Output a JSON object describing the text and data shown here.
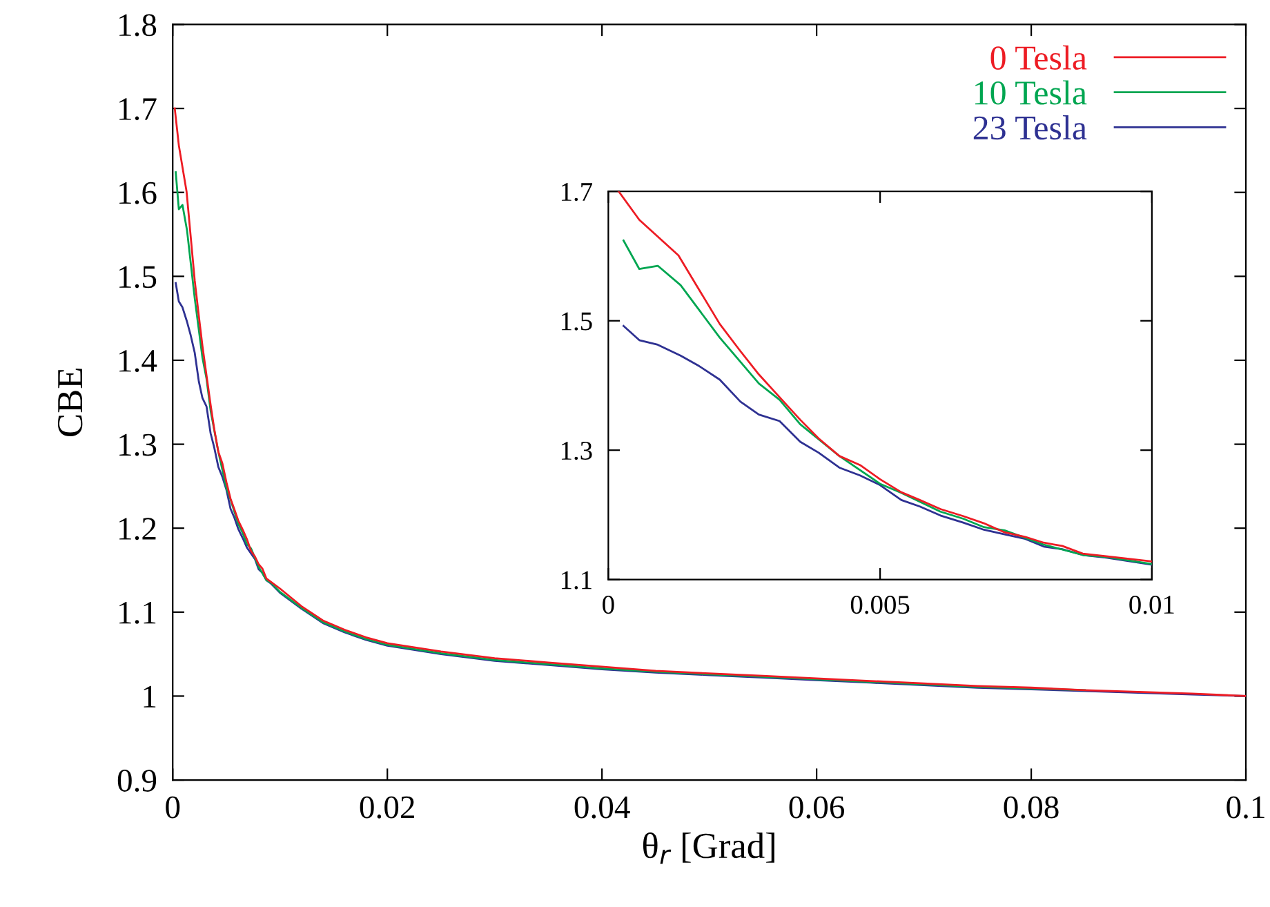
{
  "chart_data": [
    {
      "type": "line",
      "xlabel": "θ$_{r}$ [Grad]",
      "ylabel": "CBE",
      "xlim": [
        0,
        0.1
      ],
      "ylim": [
        0.9,
        1.8
      ],
      "xticks": [
        0,
        0.02,
        0.04,
        0.06,
        0.08,
        0.1
      ],
      "yticks": [
        0.9,
        1,
        1.1,
        1.2,
        1.3,
        1.4,
        1.5,
        1.6,
        1.7,
        1.8
      ],
      "legend": "top right",
      "grid": false,
      "series": [
        {
          "name": "0 Tesla",
          "color": "#ed1c24",
          "x": [
            0.00019,
            0.00057,
            0.00129,
            0.00162,
            0.00205,
            0.00243,
            0.00277,
            0.00315,
            0.00353,
            0.00387,
            0.00425,
            0.00463,
            0.005,
            0.00539,
            0.00573,
            0.00611,
            0.00653,
            0.00691,
            0.00729,
            0.00767,
            0.00801,
            0.00835,
            0.00873,
            0.00916,
            0.01,
            0.012,
            0.014,
            0.016,
            0.018,
            0.02,
            0.025,
            0.03,
            0.035,
            0.04,
            0.045,
            0.05,
            0.055,
            0.06,
            0.065,
            0.07,
            0.075,
            0.08,
            0.085,
            0.09,
            0.095,
            0.1
          ],
          "values": [
            1.7,
            1.656,
            1.601,
            1.555,
            1.495,
            1.453,
            1.417,
            1.382,
            1.347,
            1.318,
            1.291,
            1.277,
            1.255,
            1.235,
            1.223,
            1.209,
            1.198,
            1.187,
            1.173,
            1.166,
            1.157,
            1.152,
            1.14,
            1.136,
            1.128,
            1.107,
            1.09,
            1.079,
            1.07,
            1.063,
            1.053,
            1.045,
            1.04,
            1.035,
            1.03,
            1.027,
            1.024,
            1.021,
            1.018,
            1.015,
            1.012,
            1.01,
            1.007,
            1.005,
            1.003,
            1.0
          ]
        },
        {
          "name": "10 Tesla",
          "color": "#00a651",
          "x": [
            0.00028,
            0.00057,
            0.00091,
            0.00133,
            0.00205,
            0.00277,
            0.00315,
            0.00353,
            0.00425,
            0.005,
            0.00539,
            0.00611,
            0.00653,
            0.00691,
            0.00729,
            0.00801,
            0.00873,
            0.00916,
            0.01,
            0.012,
            0.014,
            0.016,
            0.018,
            0.02,
            0.025,
            0.03,
            0.035,
            0.04,
            0.045,
            0.05,
            0.055,
            0.06,
            0.065,
            0.07,
            0.075,
            0.08,
            0.085
          ],
          "values": [
            1.624,
            1.58,
            1.585,
            1.555,
            1.474,
            1.403,
            1.378,
            1.34,
            1.291,
            1.248,
            1.234,
            1.205,
            1.194,
            1.181,
            1.176,
            1.154,
            1.138,
            1.135,
            1.124,
            1.105,
            1.088,
            1.077,
            1.068,
            1.061,
            1.051,
            1.043,
            1.038,
            1.033,
            1.029,
            1.026,
            1.023,
            1.02,
            1.017,
            1.014,
            1.011,
            1.009,
            1.007
          ]
        },
        {
          "name": "23 Tesla",
          "color": "#2e3192",
          "x": [
            0.00028,
            0.00057,
            0.00091,
            0.00133,
            0.00167,
            0.00205,
            0.00243,
            0.00277,
            0.00315,
            0.00353,
            0.00387,
            0.00425,
            0.00463,
            0.005,
            0.00539,
            0.00573,
            0.00611,
            0.00653,
            0.00691,
            0.00729,
            0.00767,
            0.00801,
            0.00835,
            0.00873,
            0.00916,
            0.01,
            0.012,
            0.014,
            0.016,
            0.018,
            0.02,
            0.025,
            0.03,
            0.035,
            0.04,
            0.045,
            0.05,
            0.055,
            0.06,
            0.065,
            0.07,
            0.075,
            0.08,
            0.085,
            0.09,
            0.095,
            0.1
          ],
          "values": [
            1.492,
            1.47,
            1.463,
            1.446,
            1.43,
            1.409,
            1.375,
            1.355,
            1.345,
            1.313,
            1.296,
            1.273,
            1.261,
            1.246,
            1.223,
            1.213,
            1.199,
            1.188,
            1.177,
            1.17,
            1.163,
            1.151,
            1.147,
            1.138,
            1.134,
            1.123,
            1.104,
            1.087,
            1.076,
            1.067,
            1.06,
            1.05,
            1.042,
            1.037,
            1.032,
            1.028,
            1.025,
            1.022,
            1.019,
            1.016,
            1.013,
            1.01,
            1.008,
            1.006,
            1.004,
            1.002,
            1.0
          ]
        }
      ]
    },
    {
      "type": "line",
      "xlim": [
        0,
        0.01
      ],
      "ylim": [
        1.1,
        1.7
      ],
      "xticks": [
        0,
        0.005,
        0.01
      ],
      "yticks": [
        1.1,
        1.3,
        1.5,
        1.7
      ],
      "grid": false,
      "series": [
        {
          "color": "#ed1c24",
          "x": [
            0.00019,
            0.00057,
            0.00129,
            0.00162,
            0.00205,
            0.00243,
            0.00277,
            0.00315,
            0.00353,
            0.00387,
            0.00425,
            0.00463,
            0.005,
            0.00539,
            0.00573,
            0.00611,
            0.00653,
            0.00691,
            0.00729,
            0.00767,
            0.00801,
            0.00835,
            0.00873,
            0.00916,
            0.01
          ],
          "values": [
            1.7,
            1.656,
            1.601,
            1.555,
            1.495,
            1.453,
            1.417,
            1.382,
            1.347,
            1.318,
            1.291,
            1.277,
            1.255,
            1.235,
            1.223,
            1.209,
            1.198,
            1.187,
            1.173,
            1.166,
            1.157,
            1.152,
            1.14,
            1.136,
            1.128
          ]
        },
        {
          "color": "#00a651",
          "x": [
            0.00028,
            0.00057,
            0.00091,
            0.00133,
            0.00205,
            0.00277,
            0.00315,
            0.00353,
            0.00425,
            0.005,
            0.00539,
            0.00611,
            0.00653,
            0.00691,
            0.00729,
            0.00801,
            0.00873,
            0.00916,
            0.01
          ],
          "values": [
            1.624,
            1.58,
            1.585,
            1.555,
            1.474,
            1.403,
            1.378,
            1.34,
            1.291,
            1.248,
            1.234,
            1.205,
            1.194,
            1.181,
            1.176,
            1.154,
            1.138,
            1.135,
            1.124
          ]
        },
        {
          "color": "#2e3192",
          "x": [
            0.00028,
            0.00057,
            0.00091,
            0.00133,
            0.00167,
            0.00205,
            0.00243,
            0.00277,
            0.00315,
            0.00353,
            0.00387,
            0.00425,
            0.00463,
            0.005,
            0.00539,
            0.00573,
            0.00611,
            0.00653,
            0.00691,
            0.00729,
            0.00767,
            0.00801,
            0.00835,
            0.00873,
            0.00916,
            0.01
          ],
          "values": [
            1.492,
            1.47,
            1.463,
            1.446,
            1.43,
            1.409,
            1.375,
            1.355,
            1.345,
            1.313,
            1.296,
            1.273,
            1.261,
            1.246,
            1.223,
            1.213,
            1.199,
            1.188,
            1.177,
            1.17,
            1.163,
            1.151,
            1.147,
            1.138,
            1.134,
            1.123
          ]
        }
      ]
    }
  ]
}
